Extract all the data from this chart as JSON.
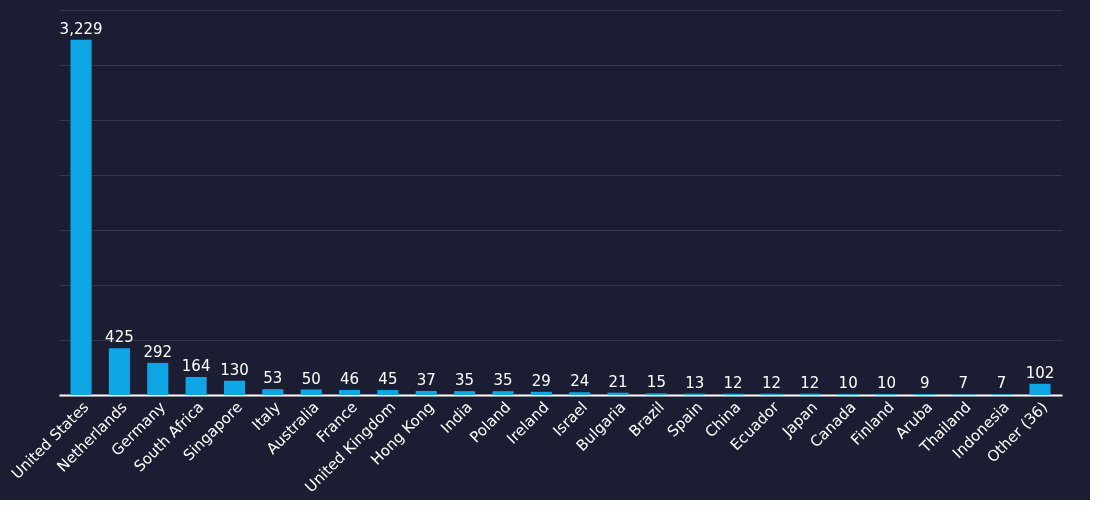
{
  "chart_data": {
    "type": "bar",
    "categories": [
      "United States",
      "Netherlands",
      "Germany",
      "South Africa",
      "Singapore",
      "Italy",
      "Australia",
      "France",
      "United Kingdom",
      "Hong Kong",
      "India",
      "Poland",
      "Ireland",
      "Israel",
      "Bulgaria",
      "Brazil",
      "Spain",
      "China",
      "Ecuador",
      "Japan",
      "Canada",
      "Finland",
      "Aruba",
      "Thailand",
      "Indonesia",
      "Other (36)"
    ],
    "values": [
      3229,
      425,
      292,
      164,
      130,
      53,
      50,
      46,
      45,
      37,
      35,
      35,
      29,
      24,
      21,
      15,
      13,
      12,
      12,
      12,
      10,
      10,
      9,
      7,
      7,
      102
    ],
    "color": "#0fa6e6",
    "ylim": [
      0,
      3500
    ],
    "yticks": [
      {
        "value": 0,
        "label": null
      },
      {
        "value": 500,
        "label": null
      },
      {
        "value": 1000,
        "label": null
      },
      {
        "value": 1500,
        "label": null
      },
      {
        "value": 2000,
        "label": null
      },
      {
        "value": 2500,
        "label": null
      },
      {
        "value": 3000,
        "label": null
      },
      {
        "value": 3500,
        "label": null
      }
    ],
    "value_labels": [
      "3,229",
      "425",
      "292",
      "164",
      "130",
      "53",
      "50",
      "46",
      "45",
      "37",
      "35",
      "35",
      "29",
      "24",
      "21",
      "15",
      "13",
      "12",
      "12",
      "12",
      "10",
      "10",
      "9",
      "7",
      "7",
      "102"
    ],
    "tick_labels": "x",
    "grid": "y"
  }
}
